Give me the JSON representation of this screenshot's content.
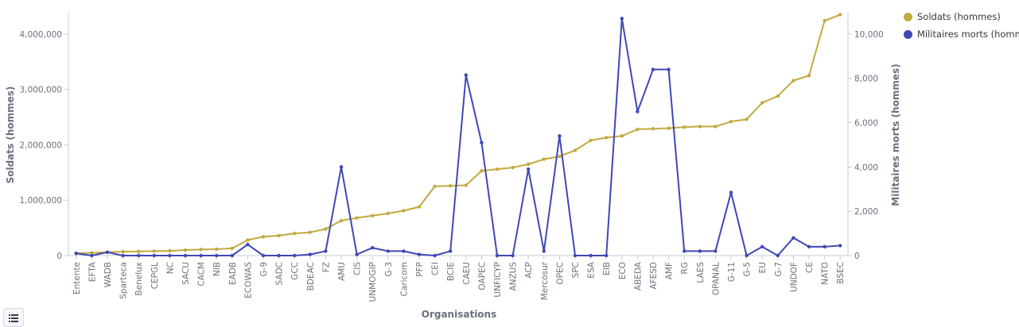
{
  "chart_data": {
    "type": "line",
    "xlabel": "Organisations",
    "ylabel_left": "Soldats (hommes)",
    "ylabel_right": "Militaires morts (hommes)",
    "categories": [
      "Entente",
      "EFTA",
      "WADB",
      "Sparteca",
      "Benelux",
      "CEPGL",
      "NC",
      "SACU",
      "CACM",
      "NIB",
      "EADB",
      "ECOWAS",
      "G-9",
      "SADC",
      "GCC",
      "BDEAC",
      "FZ",
      "AMU",
      "CIS",
      "UNMOGIP",
      "G-3",
      "Caricom",
      "PFP",
      "CEI",
      "BCIE",
      "CAEU",
      "OAPEC",
      "UNFICYP",
      "ANZUS",
      "ACP",
      "Mercosur",
      "OPEC",
      "SPC",
      "ESA",
      "EIB",
      "ECO",
      "ABEDA",
      "AFESD",
      "AMF",
      "RG",
      "LAES",
      "OPANAL",
      "G-11",
      "G-5",
      "EU",
      "G-7",
      "UNDOF",
      "CE",
      "NATO",
      "BSEC"
    ],
    "left_axis": {
      "min": 0,
      "max": 4400000,
      "ticks": [
        0,
        1000000,
        2000000,
        3000000,
        4000000
      ],
      "tick_labels": [
        "0",
        "1,000,000",
        "2,000,000",
        "3,000,000",
        "4,000,000"
      ]
    },
    "right_axis": {
      "min": 0,
      "max": 11000,
      "ticks": [
        0,
        2000,
        4000,
        6000,
        8000,
        10000
      ],
      "tick_labels": [
        "0",
        "2,000",
        "4,000",
        "6,000",
        "8,000",
        "10,000"
      ]
    },
    "series": [
      {
        "name": "Soldats (hommes)",
        "axis": "left",
        "color": "#c2aa3f",
        "values": [
          40000,
          50000,
          60000,
          70000,
          75000,
          80000,
          85000,
          100000,
          110000,
          115000,
          130000,
          280000,
          340000,
          360000,
          400000,
          420000,
          480000,
          630000,
          680000,
          720000,
          760000,
          810000,
          880000,
          1250000,
          1260000,
          1270000,
          1530000,
          1560000,
          1590000,
          1650000,
          1740000,
          1790000,
          1900000,
          2080000,
          2130000,
          2160000,
          2280000,
          2290000,
          2300000,
          2320000,
          2330000,
          2330000,
          2420000,
          2460000,
          2760000,
          2880000,
          3160000,
          3250000,
          4240000,
          4350000
        ]
      },
      {
        "name": "Militaires morts (hommes)",
        "axis": "right",
        "color": "#3f47b5",
        "values": [
          100,
          0,
          150,
          0,
          0,
          0,
          0,
          0,
          0,
          0,
          0,
          500,
          0,
          0,
          0,
          50,
          200,
          4000,
          50,
          350,
          200,
          200,
          50,
          0,
          200,
          8150,
          5100,
          0,
          0,
          3900,
          200,
          5400,
          0,
          0,
          0,
          10700,
          6500,
          8400,
          8400,
          200,
          200,
          200,
          2850,
          0,
          400,
          0,
          800,
          400,
          400,
          450
        ]
      }
    ],
    "legend_position": "right",
    "grid": false
  },
  "ui": {
    "legend_toggle_icon": "list-icon"
  }
}
